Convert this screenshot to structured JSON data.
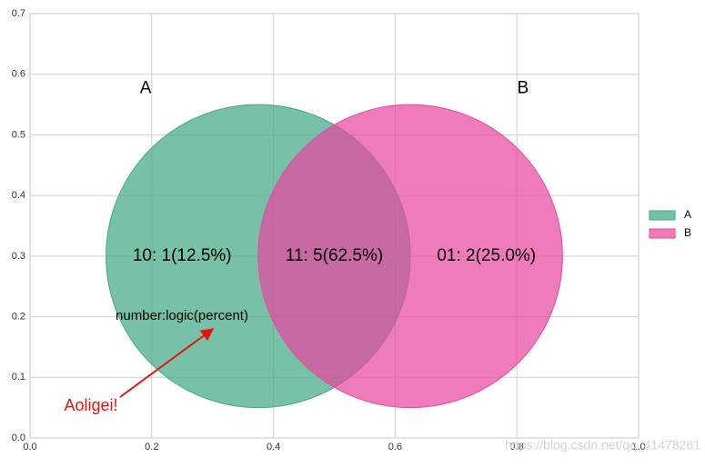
{
  "chart_data": {
    "type": "venn",
    "sets": [
      {
        "name": "A",
        "color": "#3fa784",
        "center": [
          0.375,
          0.3
        ],
        "radius": 0.25
      },
      {
        "name": "B",
        "color": "#e8489f",
        "center": [
          0.625,
          0.3
        ],
        "radius": 0.25
      }
    ],
    "region_labels": [
      "10: 1(12.5%)",
      "11: 5(62.5%)",
      "01: 2(25.0%)"
    ],
    "annotation_note": "number:logic(percent)",
    "annotation": "Aoligei!",
    "annotation_color": "#e8110f",
    "watermark": "https://blog.csdn.net/qq_41478261",
    "xlim": [
      0,
      1
    ],
    "ylim": [
      0,
      0.7
    ],
    "xticks": [
      {
        "value": 0,
        "label": "0.0"
      },
      {
        "value": 0.2,
        "label": "0.2"
      },
      {
        "value": 0.4,
        "label": "0.4"
      },
      {
        "value": 0.6,
        "label": "0.6"
      },
      {
        "value": 0.8,
        "label": "0.8"
      },
      {
        "value": 1,
        "label": "1.0"
      }
    ],
    "yticks": [
      {
        "value": 0,
        "label": "0.0"
      },
      {
        "value": 0.1,
        "label": "0.1"
      },
      {
        "value": 0.2,
        "label": "0.2"
      },
      {
        "value": 0.3,
        "label": "0.3"
      },
      {
        "value": 0.4,
        "label": "0.4"
      },
      {
        "value": 0.5,
        "label": "0.5"
      },
      {
        "value": 0.6,
        "label": "0.6"
      },
      {
        "value": 0.7,
        "label": "0.7"
      }
    ],
    "grid": true,
    "legend": "right"
  }
}
